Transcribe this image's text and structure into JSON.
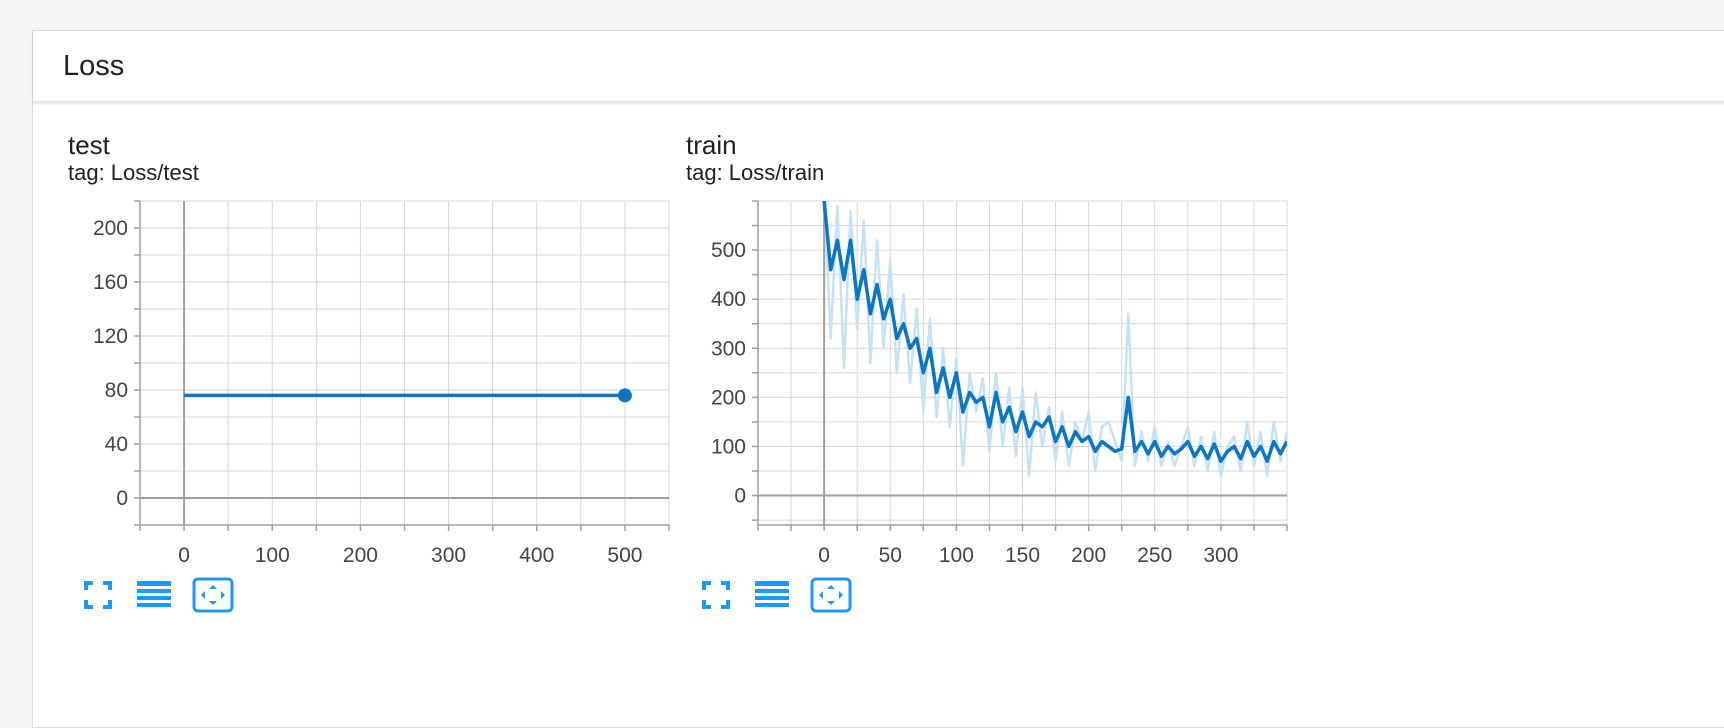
{
  "section": {
    "title": "Loss"
  },
  "colors": {
    "line": "#0b76bf",
    "raw": "#c6e2f2",
    "grid": "#d6d6d6",
    "axis": "#9e9e9e",
    "icon": "#2196f3"
  },
  "charts": [
    {
      "name": "test",
      "tag": "tag: Loss/test"
    },
    {
      "name": "train",
      "tag": "tag: Loss/train"
    }
  ],
  "toolbar_icons": [
    "fullscreen-icon",
    "toggle-log-scale-icon",
    "fit-domain-icon"
  ],
  "chart_data": [
    {
      "type": "line",
      "title": "test",
      "subtitle": "tag: Loss/test",
      "xlim": [
        -50,
        550
      ],
      "ylim": [
        -20,
        220
      ],
      "xticks": [
        0,
        100,
        200,
        300,
        400,
        500
      ],
      "yticks": [
        0,
        40,
        80,
        120,
        160,
        200
      ],
      "grid": true,
      "series": [
        {
          "x": [
            0,
            500
          ],
          "y": [
            76,
            76
          ]
        }
      ]
    },
    {
      "type": "line",
      "title": "train",
      "subtitle": "tag: Loss/train",
      "xlim": [
        -50,
        350
      ],
      "ylim": [
        -60,
        600
      ],
      "xticks": [
        0,
        50,
        100,
        150,
        200,
        250,
        300
      ],
      "yticks": [
        0,
        100,
        200,
        300,
        400,
        500
      ],
      "grid": true,
      "series": [
        {
          "style": "raw",
          "x": [
            0,
            5,
            10,
            15,
            20,
            25,
            30,
            35,
            40,
            45,
            50,
            55,
            60,
            65,
            70,
            75,
            80,
            85,
            90,
            95,
            100,
            105,
            110,
            115,
            120,
            125,
            130,
            135,
            140,
            145,
            150,
            155,
            160,
            165,
            170,
            175,
            180,
            185,
            190,
            195,
            200,
            205,
            210,
            215,
            220,
            225,
            230,
            235,
            240,
            245,
            250,
            255,
            260,
            265,
            270,
            275,
            280,
            285,
            290,
            295,
            300,
            305,
            310,
            315,
            320,
            325,
            330,
            335,
            340,
            345,
            350
          ],
          "y": [
            620,
            320,
            590,
            260,
            580,
            340,
            560,
            270,
            520,
            300,
            480,
            250,
            410,
            230,
            380,
            170,
            360,
            160,
            300,
            140,
            280,
            60,
            250,
            170,
            240,
            90,
            250,
            100,
            220,
            80,
            220,
            40,
            210,
            100,
            180,
            70,
            170,
            60,
            150,
            110,
            170,
            50,
            140,
            150,
            110,
            70,
            370,
            60,
            130,
            70,
            140,
            60,
            110,
            60,
            100,
            140,
            60,
            120,
            50,
            130,
            40,
            100,
            120,
            50,
            150,
            60,
            130,
            40,
            150,
            70,
            130
          ]
        },
        {
          "style": "smoothed",
          "x": [
            0,
            5,
            10,
            15,
            20,
            25,
            30,
            35,
            40,
            45,
            50,
            55,
            60,
            65,
            70,
            75,
            80,
            85,
            90,
            95,
            100,
            105,
            110,
            115,
            120,
            125,
            130,
            135,
            140,
            145,
            150,
            155,
            160,
            165,
            170,
            175,
            180,
            185,
            190,
            195,
            200,
            205,
            210,
            215,
            220,
            225,
            230,
            235,
            240,
            245,
            250,
            255,
            260,
            265,
            270,
            275,
            280,
            285,
            290,
            295,
            300,
            305,
            310,
            315,
            320,
            325,
            330,
            335,
            340,
            345,
            350
          ],
          "y": [
            600,
            460,
            520,
            440,
            520,
            400,
            460,
            370,
            430,
            360,
            400,
            320,
            350,
            300,
            320,
            250,
            300,
            210,
            260,
            200,
            250,
            170,
            210,
            190,
            200,
            140,
            210,
            150,
            180,
            130,
            170,
            120,
            150,
            140,
            160,
            110,
            140,
            100,
            130,
            110,
            120,
            90,
            110,
            100,
            90,
            95,
            200,
            90,
            110,
            85,
            110,
            80,
            100,
            85,
            95,
            110,
            80,
            100,
            75,
            105,
            70,
            90,
            100,
            75,
            110,
            80,
            100,
            70,
            110,
            85,
            110
          ]
        }
      ]
    }
  ]
}
